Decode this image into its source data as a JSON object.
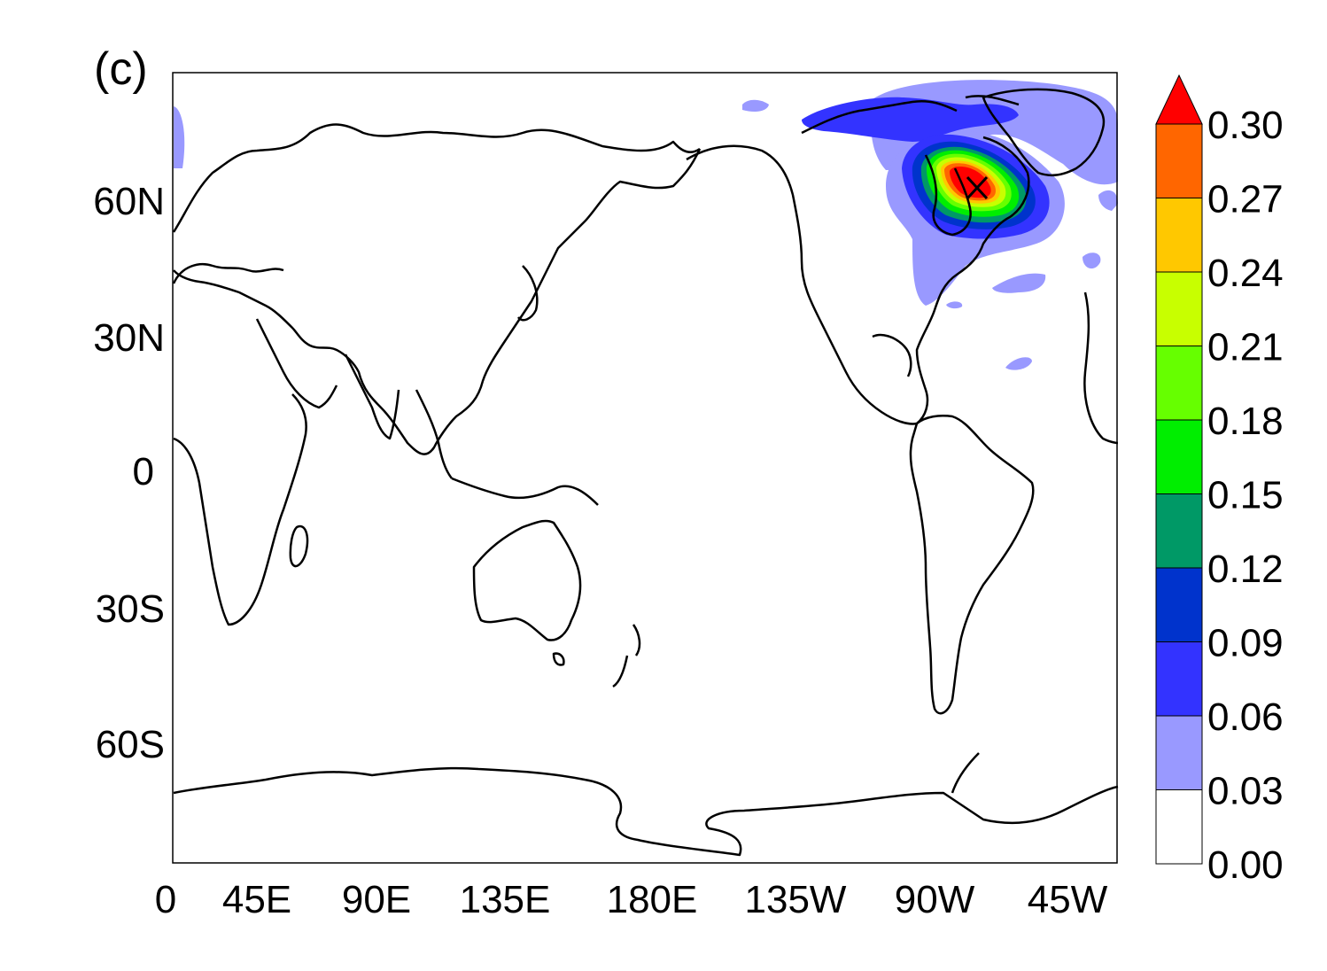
{
  "panel_label": "(c)",
  "lat_ticks": [
    "60N",
    "30N",
    "0",
    "30S",
    "60S"
  ],
  "lon_ticks": [
    "0",
    "45E",
    "90E",
    "135E",
    "180E",
    "135W",
    "90W",
    "45W"
  ],
  "colorbar": {
    "labels": [
      "0.30",
      "0.27",
      "0.24",
      "0.21",
      "0.18",
      "0.15",
      "0.12",
      "0.09",
      "0.06",
      "0.03",
      "0.00"
    ],
    "colors_top_to_bottom": [
      "#ff0000",
      "#ff6600",
      "#ffc800",
      "#c8ff00",
      "#66ff00",
      "#00ee00",
      "#009966",
      "#0033cc",
      "#3333ff",
      "#9999ff",
      "#ffffff"
    ],
    "extend": "max"
  },
  "map": {
    "projection": "cylindrical equidistant, centered on 180",
    "field": "filled contours, maximum over eastern Canada / Hudson Bay",
    "marker": "x-cross at maximum",
    "coastline_color": "#000000"
  }
}
